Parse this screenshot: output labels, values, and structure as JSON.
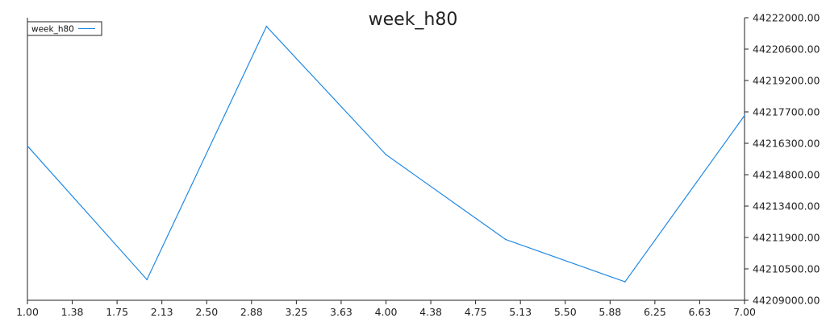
{
  "chart_data": {
    "type": "line",
    "title": "week_h80",
    "xlabel": "",
    "ylabel": "",
    "x": [
      1,
      2,
      3,
      4,
      5,
      6,
      7
    ],
    "series": [
      {
        "name": "week_h80",
        "color": "#1e88e5",
        "values": [
          44216100,
          44209950,
          44221600,
          44215700,
          44211800,
          44209850,
          44217500
        ]
      }
    ],
    "xlim": [
      1,
      7
    ],
    "ylim": [
      44209000,
      44222000
    ],
    "x_tick_labels": [
      "1.00",
      "1.38",
      "1.75",
      "2.13",
      "2.50",
      "2.88",
      "3.25",
      "3.63",
      "4.00",
      "4.38",
      "4.75",
      "5.13",
      "5.50",
      "5.88",
      "6.25",
      "6.63",
      "7.00"
    ],
    "y_tick_labels": [
      "44222000.00",
      "44220600.00",
      "44219200.00",
      "44217700.00",
      "44216300.00",
      "44214800.00",
      "44213400.00",
      "44211900.00",
      "44210500.00",
      "44209000.00"
    ],
    "y_axis_side": "right",
    "grid": false,
    "legend_position": "top-left"
  }
}
